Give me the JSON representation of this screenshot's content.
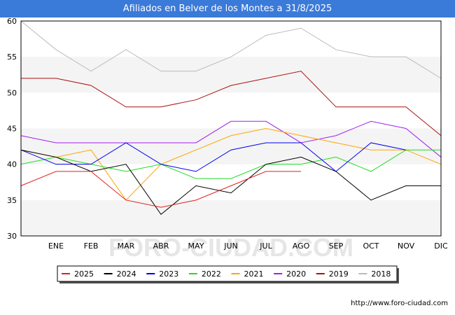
{
  "chart_data": {
    "type": "line",
    "title": "Afiliados en Belver de los Montes a 31/8/2025",
    "xlabel": "",
    "ylabel": "",
    "categories": [
      "",
      "ENE",
      "FEB",
      "MAR",
      "ABR",
      "MAY",
      "JUN",
      "JUL",
      "AGO",
      "SEP",
      "OCT",
      "NOV",
      "DIC"
    ],
    "ylim": [
      30,
      60
    ],
    "yticks": [
      30,
      35,
      40,
      45,
      50,
      55,
      60
    ],
    "grid": "horizontal bands",
    "legend_position": "bottom",
    "series": [
      {
        "name": "2025",
        "color": "#e02020",
        "values": [
          37,
          39,
          39,
          35,
          34,
          35,
          37,
          39,
          39,
          null,
          null,
          null,
          null
        ]
      },
      {
        "name": "2024",
        "color": "#000000",
        "values": [
          42,
          41,
          39,
          40,
          33,
          37,
          36,
          40,
          41,
          39,
          35,
          37,
          37
        ]
      },
      {
        "name": "2023",
        "color": "#0000ee",
        "values": [
          42,
          40,
          40,
          43,
          40,
          39,
          42,
          43,
          43,
          39,
          43,
          42,
          null
        ]
      },
      {
        "name": "2022",
        "color": "#22dd22",
        "values": [
          40,
          41,
          40,
          39,
          40,
          38,
          38,
          40,
          40,
          41,
          39,
          42,
          42
        ]
      },
      {
        "name": "2021",
        "color": "#ffa500",
        "values": [
          42,
          41,
          42,
          35,
          40,
          42,
          44,
          45,
          44,
          43,
          42,
          42,
          40
        ]
      },
      {
        "name": "2020",
        "color": "#a020f0",
        "values": [
          44,
          43,
          43,
          43,
          43,
          43,
          46,
          46,
          43,
          44,
          46,
          45,
          41
        ]
      },
      {
        "name": "2019",
        "color": "#aa1111",
        "values": [
          52,
          52,
          51,
          48,
          48,
          49,
          51,
          52,
          53,
          48,
          48,
          48,
          44
        ]
      },
      {
        "name": "2018",
        "color": "#bbbbbb",
        "values": [
          60,
          56,
          53,
          56,
          53,
          53,
          55,
          58,
          59,
          56,
          55,
          55,
          52
        ]
      }
    ]
  },
  "watermark": "FORO-CIUDAD.COM",
  "footer_url": "http://www.foro-ciudad.com"
}
